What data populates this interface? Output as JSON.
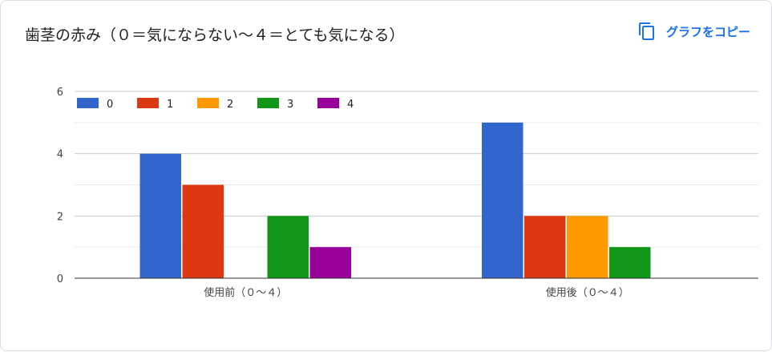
{
  "title": "歯茎の赤み（０＝気にならない〜４＝とても気になる）",
  "copy_button": {
    "label": "グラフをコピー",
    "icon": "copy-icon"
  },
  "chart_data": {
    "type": "bar",
    "title": "歯茎の赤み（０＝気にならない〜４＝とても気になる）",
    "xlabel": "",
    "ylabel": "",
    "categories": [
      "使用前（０〜４）",
      "使用後（０〜４）"
    ],
    "series": [
      {
        "name": "0",
        "color": "#3366cc",
        "values": [
          4,
          5
        ]
      },
      {
        "name": "1",
        "color": "#dc3912",
        "values": [
          3,
          2
        ]
      },
      {
        "name": "2",
        "color": "#ff9900",
        "values": [
          0,
          2
        ]
      },
      {
        "name": "3",
        "color": "#109618",
        "values": [
          2,
          1
        ]
      },
      {
        "name": "4",
        "color": "#990099",
        "values": [
          1,
          0
        ]
      }
    ],
    "yticks": [
      "0",
      "2",
      "4",
      "6"
    ],
    "ylim": [
      0,
      6
    ],
    "grid": true,
    "legend_position": "top-left"
  }
}
